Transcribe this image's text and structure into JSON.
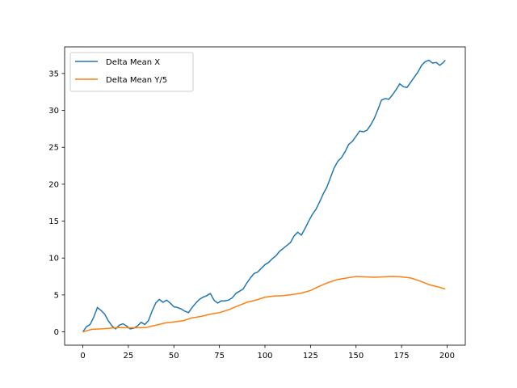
{
  "chart_data": {
    "type": "line",
    "title": "",
    "xlabel": "",
    "ylabel": "",
    "xlim": [
      -10,
      210
    ],
    "ylim": [
      -1.8,
      38.6
    ],
    "xticks": [
      0,
      25,
      50,
      75,
      100,
      125,
      150,
      175,
      200
    ],
    "yticks": [
      0,
      5,
      10,
      15,
      20,
      25,
      30,
      35
    ],
    "grid": false,
    "legend": {
      "position": "upper-left"
    },
    "series": [
      {
        "name": "Delta Mean X",
        "color": "#1f77b4",
        "x": [
          0,
          2,
          4,
          6,
          8,
          10,
          12,
          14,
          16,
          18,
          20,
          22,
          24,
          26,
          28,
          30,
          32,
          34,
          36,
          38,
          40,
          42,
          44,
          46,
          48,
          50,
          52,
          54,
          56,
          58,
          60,
          62,
          64,
          66,
          68,
          70,
          72,
          74,
          76,
          78,
          80,
          82,
          84,
          86,
          88,
          90,
          92,
          94,
          96,
          98,
          100,
          102,
          104,
          106,
          108,
          110,
          112,
          114,
          116,
          118,
          120,
          122,
          124,
          126,
          128,
          130,
          132,
          134,
          136,
          138,
          140,
          142,
          144,
          146,
          148,
          150,
          152,
          154,
          156,
          158,
          160,
          162,
          164,
          166,
          168,
          170,
          172,
          174,
          176,
          178,
          180,
          182,
          184,
          186,
          188,
          190,
          192,
          194,
          196,
          198,
          199
        ],
        "y": [
          0.0,
          0.7,
          1.0,
          2.0,
          3.3,
          2.9,
          2.4,
          1.5,
          0.8,
          0.4,
          0.9,
          1.1,
          0.8,
          0.4,
          0.5,
          0.8,
          1.3,
          1.0,
          1.5,
          2.8,
          3.9,
          4.4,
          4.0,
          4.3,
          3.9,
          3.4,
          3.3,
          3.1,
          2.8,
          2.6,
          3.3,
          3.9,
          4.4,
          4.7,
          4.9,
          5.2,
          4.3,
          3.9,
          4.2,
          4.2,
          4.3,
          4.6,
          5.2,
          5.5,
          5.8,
          6.6,
          7.3,
          7.9,
          8.1,
          8.6,
          9.1,
          9.4,
          9.9,
          10.3,
          10.9,
          11.3,
          11.7,
          12.1,
          13.0,
          13.5,
          13.1,
          14.0,
          15.0,
          15.9,
          16.6,
          17.6,
          18.7,
          19.6,
          20.9,
          22.2,
          23.1,
          23.6,
          24.4,
          25.4,
          25.8,
          26.5,
          27.2,
          27.1,
          27.3,
          28.0,
          28.9,
          30.1,
          31.4,
          31.6,
          31.5,
          32.1,
          32.8,
          33.6,
          33.2,
          33.1,
          33.8,
          34.5,
          35.2,
          36.1,
          36.6,
          36.8,
          36.4,
          36.5,
          36.1,
          36.5,
          36.8
        ]
      },
      {
        "name": "Delta Mean Y/5",
        "color": "#ff7f0e",
        "x": [
          0,
          5,
          10,
          15,
          20,
          25,
          30,
          35,
          40,
          45,
          50,
          55,
          60,
          65,
          70,
          75,
          80,
          85,
          90,
          95,
          100,
          105,
          110,
          115,
          120,
          125,
          130,
          135,
          140,
          145,
          150,
          155,
          160,
          165,
          170,
          175,
          180,
          185,
          190,
          195,
          199
        ],
        "y": [
          0.0,
          0.35,
          0.4,
          0.5,
          0.6,
          0.55,
          0.55,
          0.6,
          0.9,
          1.2,
          1.35,
          1.5,
          1.9,
          2.1,
          2.4,
          2.6,
          3.0,
          3.5,
          4.0,
          4.3,
          4.7,
          4.85,
          4.9,
          5.05,
          5.25,
          5.6,
          6.2,
          6.7,
          7.1,
          7.3,
          7.5,
          7.45,
          7.4,
          7.45,
          7.5,
          7.45,
          7.3,
          6.9,
          6.4,
          6.1,
          5.8
        ]
      }
    ]
  }
}
